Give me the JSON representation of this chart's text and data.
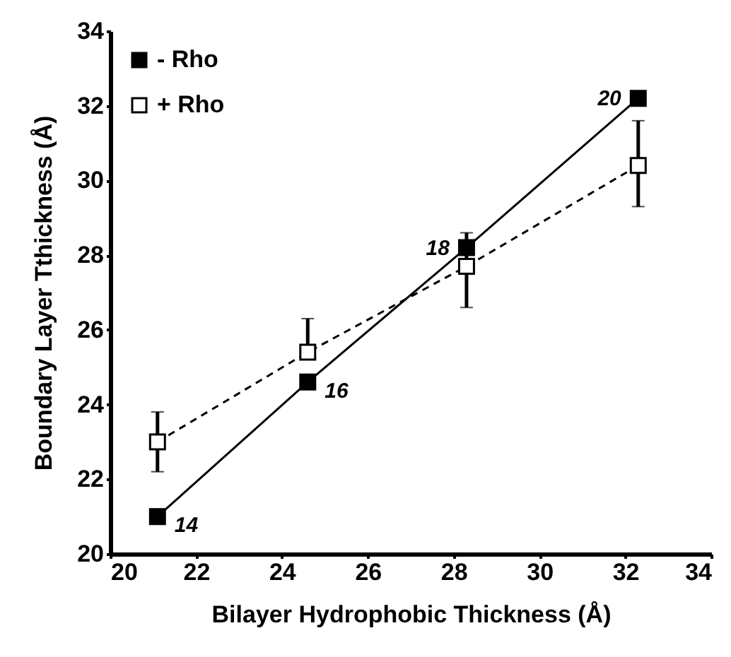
{
  "chart_data": {
    "type": "line",
    "xlabel": "Bilayer Hydrophobic Thickness (Å)",
    "ylabel": "Boundary Layer Tthickness  (Å)",
    "xlim": [
      20,
      34
    ],
    "xticks": [
      20,
      22,
      24,
      26,
      28,
      30,
      32,
      34
    ],
    "ylim": [
      20,
      34
    ],
    "yticks": [
      20,
      22,
      24,
      26,
      28,
      30,
      32,
      34
    ],
    "x": [
      21.1,
      24.6,
      28.3,
      32.3
    ],
    "marker": "square",
    "legend": "top left",
    "grid": false,
    "series": [
      {
        "name": "- Rho",
        "color": "#000000",
        "line_style": "solid",
        "values": [
          21.0,
          24.6,
          28.2,
          32.2
        ]
      },
      {
        "name": "+ Rho",
        "color": "#000000",
        "line_style": "dashed",
        "values": [
          23.0,
          25.4,
          27.7,
          30.4
        ],
        "errors": [
          [
            22.2,
            23.8
          ],
          [
            25.4,
            26.3
          ],
          [
            26.6,
            28.6
          ],
          [
            29.3,
            31.6
          ]
        ]
      }
    ],
    "annotations": [
      {
        "text": "14",
        "x": 21.1,
        "y": 21.0
      },
      {
        "text": "16",
        "x": 24.6,
        "y": 24.6
      },
      {
        "text": "18",
        "x": 28.3,
        "y": 28.2
      },
      {
        "text": "20",
        "x": 32.3,
        "y": 32.2
      }
    ]
  }
}
